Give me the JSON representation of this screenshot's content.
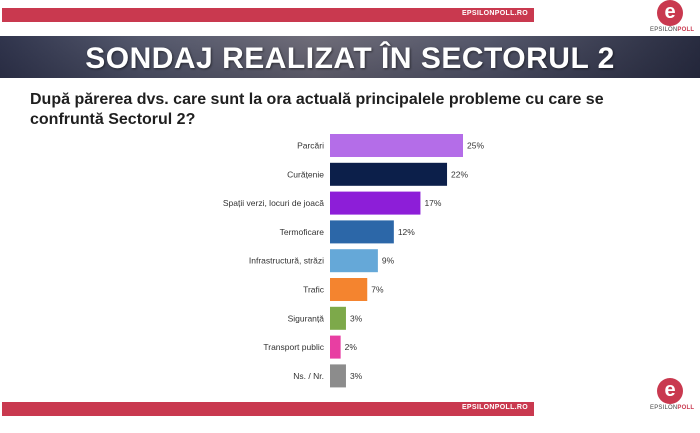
{
  "header": {
    "site": "EPSILONPOLL.RO"
  },
  "footer": {
    "site": "EPSILONPOLL.RO"
  },
  "logo": {
    "letter": "e",
    "brand_part1": "EPSILON",
    "brand_part2": "POLL"
  },
  "banner": {
    "title": "SONDAJ REALIZAT ÎN SECTORUL 2"
  },
  "question": "După părerea dvs. care sunt la ora actuală principalele probleme cu care se confruntă Sectorul 2?",
  "colors": {
    "brand": "#c9394f"
  },
  "chart_data": {
    "type": "bar",
    "orientation": "horizontal",
    "categories": [
      "Parcări",
      "Curățenie",
      "Spații verzi, locuri de joacă",
      "Termoficare",
      "Infrastructură, străzi",
      "Trafic",
      "Siguranță",
      "Transport public",
      "Ns. / Nr."
    ],
    "values": [
      25,
      22,
      17,
      12,
      9,
      7,
      3,
      2,
      3
    ],
    "value_labels": [
      "25%",
      "22%",
      "17%",
      "12%",
      "9%",
      "7%",
      "3%",
      "2%",
      "3%"
    ],
    "colors": [
      "#b46de8",
      "#0c1f4a",
      "#8d1ed8",
      "#2c67a8",
      "#65a8d8",
      "#f4842f",
      "#7da94a",
      "#e83ea2",
      "#8c8c8c"
    ],
    "xlim": [
      0,
      25
    ],
    "grid": false,
    "legend": "none"
  }
}
